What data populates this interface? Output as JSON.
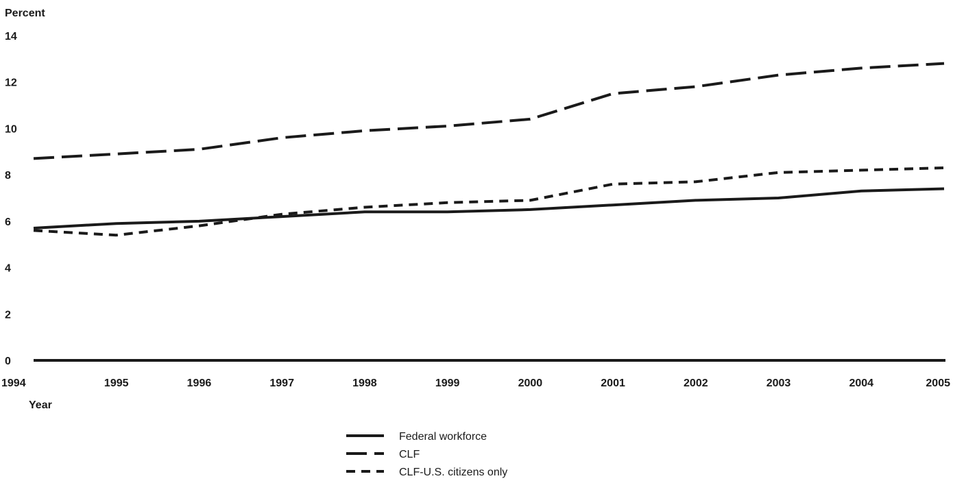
{
  "chart_data": {
    "type": "line",
    "title": "",
    "ylabel": "Percent",
    "xlabel": "Year",
    "ylim": [
      0,
      14
    ],
    "yticks": [
      0,
      2,
      4,
      6,
      8,
      10,
      12,
      14
    ],
    "x": [
      1994,
      1995,
      1996,
      1997,
      1998,
      1999,
      2000,
      2001,
      2002,
      2003,
      2004,
      2005
    ],
    "grid": false,
    "legend_position": "bottom-center",
    "series": [
      {
        "name": "Federal workforce",
        "style": "solid",
        "values": [
          5.7,
          5.9,
          6.0,
          6.2,
          6.4,
          6.4,
          6.5,
          6.7,
          6.9,
          7.0,
          7.3,
          7.4
        ]
      },
      {
        "name": "CLF",
        "style": "long-dash",
        "values": [
          8.7,
          8.9,
          9.1,
          9.6,
          9.9,
          10.1,
          10.4,
          11.5,
          11.8,
          12.3,
          12.6,
          12.8
        ]
      },
      {
        "name": "CLF-U.S. citizens only",
        "style": "short-dash",
        "values": [
          5.6,
          5.4,
          5.8,
          6.3,
          6.6,
          6.8,
          6.9,
          7.6,
          7.7,
          8.1,
          8.2,
          8.3
        ]
      }
    ]
  }
}
